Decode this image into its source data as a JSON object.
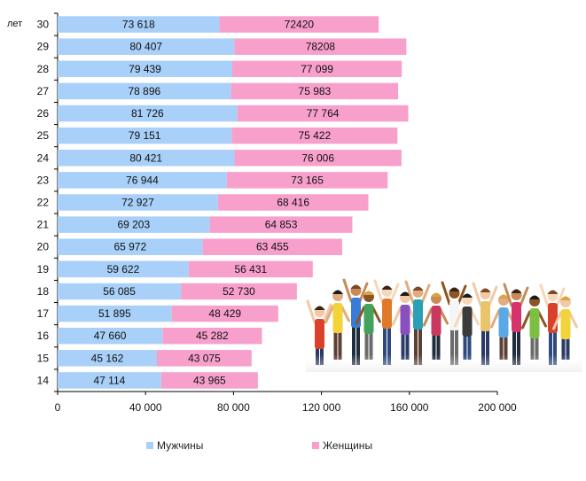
{
  "chart_data": {
    "type": "bar",
    "orientation": "horizontal",
    "stacked": true,
    "y_unit_label": "лет",
    "categories": [
      "30",
      "29",
      "28",
      "27",
      "26",
      "25",
      "24",
      "23",
      "22",
      "21",
      "20",
      "19",
      "18",
      "17",
      "16",
      "15",
      "14"
    ],
    "series": [
      {
        "name": "Мужчины",
        "color": "#a8d0f8",
        "values": [
          73618,
          80407,
          79439,
          78896,
          81726,
          79151,
          80421,
          76944,
          72927,
          69203,
          65972,
          59622,
          56085,
          51895,
          47660,
          45162,
          47114
        ],
        "labels": [
          "73 618",
          "80 407",
          "79 439",
          "78 896",
          "81 726",
          "79 151",
          "80 421",
          "76 944",
          "72 927",
          "69 203",
          "65 972",
          "59 622",
          "56 085",
          "51 895",
          "47 660",
          "45 162",
          "47 114"
        ]
      },
      {
        "name": "Женщины",
        "color": "#f8a0cc",
        "values": [
          72420,
          78208,
          77099,
          75983,
          77764,
          75422,
          76006,
          73165,
          68416,
          64853,
          63455,
          56431,
          52730,
          48429,
          45282,
          43075,
          43965
        ],
        "labels": [
          "72420",
          "78208",
          "77 099",
          "75 983",
          "77 764",
          "75 422",
          "76 006",
          "73 165",
          "68 416",
          "64 853",
          "63 455",
          "56 431",
          "52 730",
          "48 429",
          "45 282",
          "43 075",
          "43 965"
        ]
      }
    ],
    "xlim": [
      0,
      200000
    ],
    "xticks": [
      0,
      40000,
      80000,
      120000,
      160000,
      200000
    ],
    "xtick_labels": [
      "0",
      "40 000",
      "80 000",
      "120 000",
      "160 000",
      "200 000"
    ],
    "grid": false,
    "legend_position": "bottom"
  },
  "photo": {
    "icon": "cheering-youth-crowd-photo"
  }
}
